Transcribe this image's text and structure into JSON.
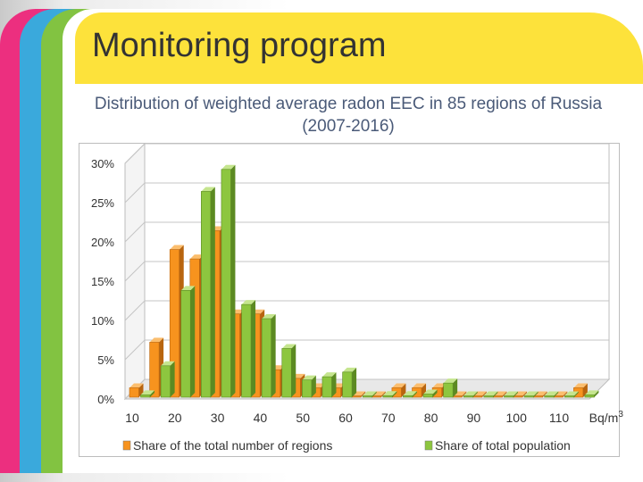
{
  "slide": {
    "title": "Monitoring program",
    "subtitle": "Distribution of weighted average radon EEC in 85 regions of Russia (2007-2016)"
  },
  "colors": {
    "regions": "#f7931e",
    "population": "#8dc63f",
    "title_bar": "#fde23b"
  },
  "chart_data": {
    "type": "bar",
    "title": "Distribution of weighted average radon EEC in 85 regions of Russia (2007-2016)",
    "xunit": "Bq/m3",
    "xticks": [
      "10",
      "20",
      "30",
      "40",
      "50",
      "60",
      "70",
      "80",
      "90",
      "100",
      "110",
      "Bq/m3"
    ],
    "yticks": [
      "0%",
      "5%",
      "10%",
      "15%",
      "20%",
      "25%",
      "30%"
    ],
    "ylim": [
      0,
      30
    ],
    "categories": [
      "5",
      "10",
      "15",
      "20",
      "25",
      "30",
      "35",
      "40",
      "45",
      "50",
      "55",
      "60",
      "65",
      "70",
      "75",
      "80",
      "85",
      "90",
      "95",
      "100",
      "105",
      "110",
      "115"
    ],
    "series": [
      {
        "name": "Share of the total number of regions",
        "values": [
          1.2,
          7.0,
          18.8,
          17.6,
          21.2,
          10.6,
          10.6,
          3.5,
          2.4,
          1.2,
          1.2,
          0,
          0,
          1.2,
          1.2,
          1.2,
          0,
          0,
          0,
          0,
          0,
          0,
          1.2
        ]
      },
      {
        "name": "Share of total population",
        "values": [
          0.3,
          4.0,
          13.6,
          26.2,
          29.0,
          11.8,
          10.0,
          6.2,
          2.2,
          2.6,
          3.2,
          0.1,
          0.2,
          0.2,
          0.4,
          1.8,
          0.1,
          0.1,
          0.1,
          0.1,
          0.1,
          0.1,
          0.3
        ]
      }
    ],
    "legend": [
      "Share of the total number of regions",
      "Share of total population"
    ],
    "legend_position": "bottom",
    "grid": true
  }
}
